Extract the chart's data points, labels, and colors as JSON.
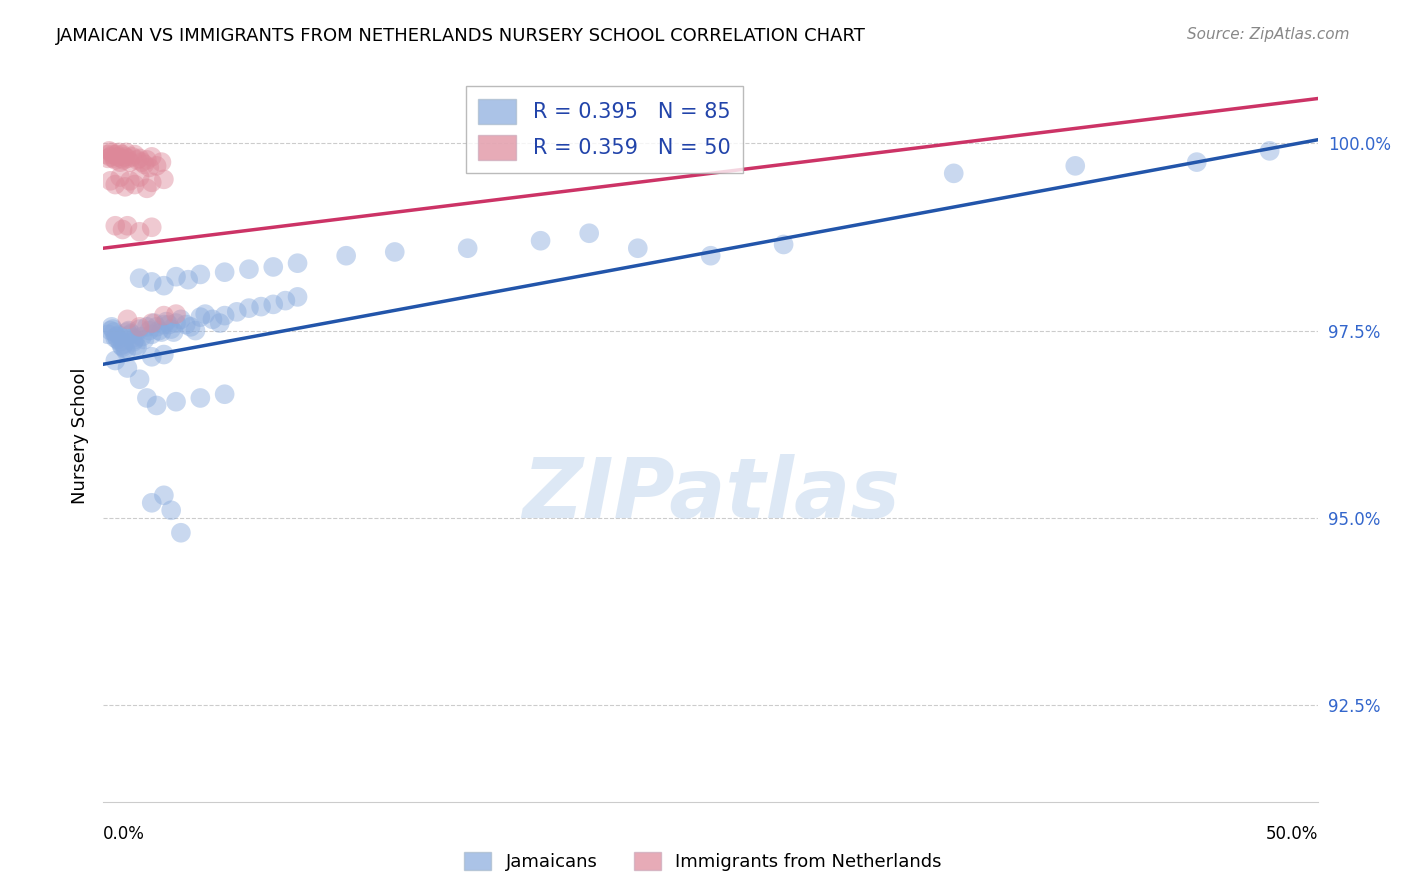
{
  "title": "JAMAICAN VS IMMIGRANTS FROM NETHERLANDS NURSERY SCHOOL CORRELATION CHART",
  "source": "Source: ZipAtlas.com",
  "ylabel": "Nursery School",
  "ytick_labels": [
    "92.5%",
    "95.0%",
    "97.5%",
    "100.0%"
  ],
  "ytick_values": [
    92.5,
    95.0,
    97.5,
    100.0
  ],
  "xmin": 0.0,
  "xmax": 50.0,
  "ymin": 91.2,
  "ymax": 101.0,
  "blue_color": "#88aadd",
  "pink_color": "#dd8899",
  "blue_line_color": "#2255aa",
  "pink_line_color": "#cc3366",
  "watermark_text": "ZIPatlas",
  "blue_line_x": [
    0.0,
    50.0
  ],
  "blue_line_y": [
    97.05,
    100.05
  ],
  "pink_line_x": [
    0.0,
    50.0
  ],
  "pink_line_y": [
    98.6,
    100.6
  ],
  "blue_scatter": [
    [
      0.2,
      97.45
    ],
    [
      0.3,
      97.5
    ],
    [
      0.35,
      97.55
    ],
    [
      0.4,
      97.52
    ],
    [
      0.45,
      97.48
    ],
    [
      0.5,
      97.4
    ],
    [
      0.55,
      97.42
    ],
    [
      0.6,
      97.38
    ],
    [
      0.65,
      97.44
    ],
    [
      0.7,
      97.35
    ],
    [
      0.75,
      97.3
    ],
    [
      0.8,
      97.28
    ],
    [
      0.85,
      97.32
    ],
    [
      0.9,
      97.26
    ],
    [
      0.95,
      97.22
    ],
    [
      1.0,
      97.48
    ],
    [
      1.05,
      97.5
    ],
    [
      1.1,
      97.44
    ],
    [
      1.15,
      97.46
    ],
    [
      1.2,
      97.4
    ],
    [
      1.25,
      97.35
    ],
    [
      1.3,
      97.38
    ],
    [
      1.35,
      97.3
    ],
    [
      1.4,
      97.28
    ],
    [
      1.5,
      97.52
    ],
    [
      1.6,
      97.42
    ],
    [
      1.7,
      97.38
    ],
    [
      1.8,
      97.55
    ],
    [
      1.9,
      97.5
    ],
    [
      2.0,
      97.45
    ],
    [
      2.1,
      97.6
    ],
    [
      2.2,
      97.55
    ],
    [
      2.3,
      97.5
    ],
    [
      2.4,
      97.48
    ],
    [
      2.5,
      97.58
    ],
    [
      2.6,
      97.62
    ],
    [
      2.7,
      97.58
    ],
    [
      2.8,
      97.52
    ],
    [
      2.9,
      97.48
    ],
    [
      3.0,
      97.6
    ],
    [
      3.2,
      97.65
    ],
    [
      3.4,
      97.58
    ],
    [
      3.6,
      97.55
    ],
    [
      3.8,
      97.5
    ],
    [
      4.0,
      97.68
    ],
    [
      4.2,
      97.72
    ],
    [
      4.5,
      97.65
    ],
    [
      4.8,
      97.6
    ],
    [
      5.0,
      97.7
    ],
    [
      5.5,
      97.75
    ],
    [
      6.0,
      97.8
    ],
    [
      6.5,
      97.82
    ],
    [
      7.0,
      97.85
    ],
    [
      7.5,
      97.9
    ],
    [
      8.0,
      97.95
    ],
    [
      1.5,
      98.2
    ],
    [
      2.0,
      98.15
    ],
    [
      2.5,
      98.1
    ],
    [
      3.0,
      98.22
    ],
    [
      3.5,
      98.18
    ],
    [
      4.0,
      98.25
    ],
    [
      5.0,
      98.28
    ],
    [
      6.0,
      98.32
    ],
    [
      7.0,
      98.35
    ],
    [
      8.0,
      98.4
    ],
    [
      10.0,
      98.5
    ],
    [
      12.0,
      98.55
    ],
    [
      15.0,
      98.6
    ],
    [
      18.0,
      98.7
    ],
    [
      20.0,
      98.8
    ],
    [
      0.5,
      97.1
    ],
    [
      1.0,
      97.0
    ],
    [
      1.5,
      96.85
    ],
    [
      2.0,
      97.15
    ],
    [
      2.5,
      97.18
    ],
    [
      1.8,
      96.6
    ],
    [
      2.2,
      96.5
    ],
    [
      3.0,
      96.55
    ],
    [
      4.0,
      96.6
    ],
    [
      5.0,
      96.65
    ],
    [
      2.0,
      95.2
    ],
    [
      2.5,
      95.3
    ],
    [
      2.8,
      95.1
    ],
    [
      3.2,
      94.8
    ],
    [
      35.0,
      99.6
    ],
    [
      40.0,
      99.7
    ],
    [
      45.0,
      99.75
    ],
    [
      48.0,
      99.9
    ],
    [
      22.0,
      98.6
    ],
    [
      25.0,
      98.5
    ],
    [
      28.0,
      98.65
    ]
  ],
  "pink_scatter": [
    [
      0.15,
      99.85
    ],
    [
      0.2,
      99.8
    ],
    [
      0.25,
      99.9
    ],
    [
      0.3,
      99.82
    ],
    [
      0.35,
      99.88
    ],
    [
      0.4,
      99.85
    ],
    [
      0.45,
      99.8
    ],
    [
      0.5,
      99.78
    ],
    [
      0.55,
      99.85
    ],
    [
      0.6,
      99.82
    ],
    [
      0.65,
      99.88
    ],
    [
      0.7,
      99.75
    ],
    [
      0.75,
      99.8
    ],
    [
      0.8,
      99.85
    ],
    [
      0.85,
      99.78
    ],
    [
      0.9,
      99.82
    ],
    [
      0.95,
      99.88
    ],
    [
      1.0,
      99.8
    ],
    [
      1.1,
      99.75
    ],
    [
      1.2,
      99.82
    ],
    [
      1.3,
      99.85
    ],
    [
      1.4,
      99.78
    ],
    [
      1.5,
      99.8
    ],
    [
      1.6,
      99.75
    ],
    [
      1.7,
      99.72
    ],
    [
      1.8,
      99.78
    ],
    [
      1.9,
      99.68
    ],
    [
      2.0,
      99.82
    ],
    [
      2.2,
      99.7
    ],
    [
      2.4,
      99.75
    ],
    [
      0.3,
      99.5
    ],
    [
      0.5,
      99.45
    ],
    [
      0.7,
      99.55
    ],
    [
      0.9,
      99.42
    ],
    [
      1.1,
      99.5
    ],
    [
      1.3,
      99.45
    ],
    [
      1.5,
      99.55
    ],
    [
      1.8,
      99.4
    ],
    [
      2.0,
      99.48
    ],
    [
      2.5,
      99.52
    ],
    [
      0.5,
      98.9
    ],
    [
      0.8,
      98.85
    ],
    [
      1.0,
      98.9
    ],
    [
      1.5,
      98.82
    ],
    [
      2.0,
      98.88
    ],
    [
      1.0,
      97.65
    ],
    [
      1.5,
      97.55
    ],
    [
      2.0,
      97.6
    ],
    [
      2.5,
      97.7
    ],
    [
      3.0,
      97.72
    ]
  ]
}
